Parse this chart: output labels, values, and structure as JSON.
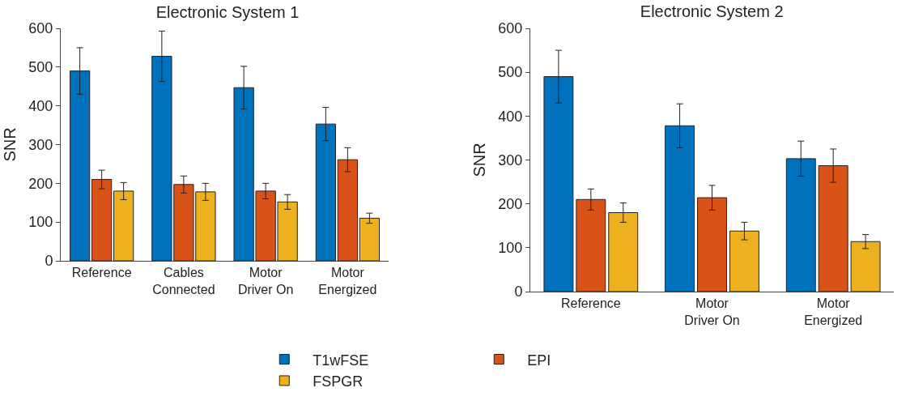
{
  "chart_data": [
    {
      "type": "bar",
      "title": "Electronic System 1",
      "ylabel": "SNR",
      "categories": [
        "Reference",
        "Cables\nConnected",
        "Motor\nDriver On",
        "Motor\nEnergized"
      ],
      "ylim": [
        0,
        600
      ],
      "yticks": [
        0,
        100,
        200,
        300,
        400,
        500,
        600
      ],
      "grid": false,
      "legend": "bottom",
      "series": [
        {
          "name": "T1wFSE",
          "color": "#0072bd",
          "values": [
            490,
            528,
            447,
            353
          ],
          "errors": [
            60,
            65,
            55,
            43
          ]
        },
        {
          "name": "EPI",
          "color": "#d95319",
          "values": [
            210,
            197,
            180,
            261
          ],
          "errors": [
            24,
            22,
            20,
            31
          ]
        },
        {
          "name": "FSPGR",
          "color": "#edb120",
          "values": [
            180,
            178,
            152,
            110
          ],
          "errors": [
            22,
            22,
            19,
            13
          ]
        }
      ]
    },
    {
      "type": "bar",
      "title": "Electronic System 2",
      "ylabel": "SNR",
      "categories": [
        "Reference",
        "Motor\nDriver On",
        "Motor\nEnergized"
      ],
      "ylim": [
        0,
        600
      ],
      "yticks": [
        0,
        100,
        200,
        300,
        400,
        500,
        600
      ],
      "grid": false,
      "legend": false,
      "series": [
        {
          "color": "#0072bd",
          "values": [
            490,
            378,
            303
          ],
          "errors": [
            60,
            50,
            40
          ]
        },
        {
          "color": "#d95319",
          "values": [
            210,
            214,
            287
          ],
          "errors": [
            24,
            28,
            38
          ]
        },
        {
          "color": "#edb120",
          "values": [
            180,
            138,
            114
          ],
          "errors": [
            22,
            20,
            16
          ]
        }
      ]
    }
  ]
}
